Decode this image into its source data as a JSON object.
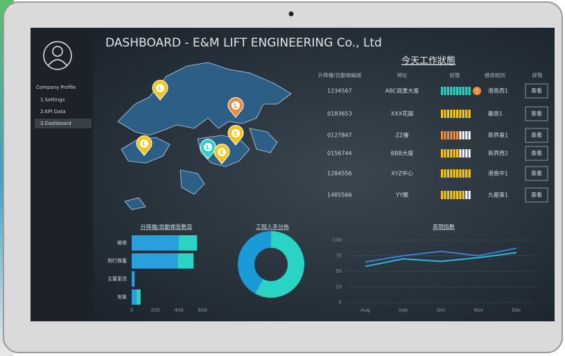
{
  "sidebar": {
    "heading": "Company Profile",
    "items": [
      "1.Settings",
      "2.KPI Data",
      "3.Dashboard"
    ],
    "active": 2
  },
  "header": {
    "title": "DASHBOARD - E&M LIFT ENGINEERING Co., Ltd"
  },
  "map": {
    "markers": [
      {
        "label": "L",
        "color": "#f5c518"
      },
      {
        "label": "L",
        "color": "#f08a3c"
      },
      {
        "label": "E",
        "color": "#f5c518"
      },
      {
        "label": "L",
        "color": "#f5c518"
      },
      {
        "label": "L",
        "color": "#2ad4c4"
      },
      {
        "label": "E",
        "color": "#f5c518"
      }
    ]
  },
  "table": {
    "title": "今天工作狀態",
    "columns": [
      "升降機/自動梯編號",
      "地址",
      "狀態",
      "維修組別",
      "詳情"
    ],
    "rows": [
      {
        "id": "1234567",
        "address": "ABC商業大廈",
        "status": {
          "color": "#2ad4c4",
          "level": 10
        },
        "alert": "!",
        "team": "港島西1",
        "action": "查看"
      },
      {
        "id": "0183653",
        "address": "XXX花園",
        "status": {
          "color": "#f5c518",
          "level": 10
        },
        "team": "離島1",
        "action": "查看"
      },
      {
        "id": "0127847",
        "address": "ZZ樓",
        "status": {
          "color": "#f08a3c",
          "level": 6
        },
        "team": "新界東1",
        "action": "查看"
      },
      {
        "id": "0156744",
        "address": "BBB大廈",
        "status": {
          "color": "#f5c518",
          "level": 6
        },
        "team": "新界西2",
        "action": "查看"
      },
      {
        "id": "1284556",
        "address": "XYZ中心",
        "status": {
          "color": "#f5c518",
          "level": 10
        },
        "team": "港島中1",
        "action": "查看"
      },
      {
        "id": "1485566",
        "address": "YY閣",
        "status": {
          "color": "#f5c518",
          "level": 8
        },
        "team": "九龍東1",
        "action": "查看"
      }
    ]
  },
  "chart_data": [
    {
      "type": "bar",
      "orientation": "horizontal",
      "stacked": true,
      "title": "升降機/自動梯受數目",
      "categories": [
        "維修",
        "例行保養",
        "主要更改",
        "安裝"
      ],
      "series": [
        {
          "color": "#2a9fe0",
          "values": [
            400,
            390,
            25,
            40
          ]
        },
        {
          "color": "#2ad4c4",
          "values": [
            155,
            135,
            0,
            35
          ]
        }
      ],
      "xlim": [
        0,
        600
      ],
      "xticks": [
        0,
        200,
        400,
        600
      ]
    },
    {
      "type": "donut",
      "title": "工程人手分佈",
      "values": [
        58,
        42
      ],
      "colors": [
        "#2ad4c4",
        "#1a9ad6"
      ]
    },
    {
      "type": "line",
      "title": "表現指數",
      "categories": [
        "Aug",
        "Sep",
        "Oct",
        "Nov",
        "Dec"
      ],
      "series": [
        {
          "color": "#3b7fd0",
          "values": [
            65,
            75,
            82,
            75,
            87
          ]
        },
        {
          "color": "#2ab8e0",
          "values": [
            58,
            70,
            66,
            72,
            80
          ]
        }
      ],
      "ylim": [
        0,
        100
      ],
      "yticks": [
        0,
        25,
        50,
        75,
        100
      ],
      "grid": true
    }
  ]
}
